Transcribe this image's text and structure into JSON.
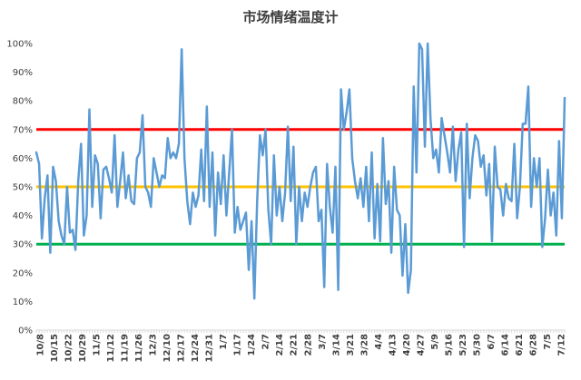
{
  "chart_data": {
    "type": "line",
    "title": "市场情绪温度计",
    "xlabel": "",
    "ylabel": "",
    "ylim": [
      0,
      100
    ],
    "y_ticks": [
      "0%",
      "10%",
      "20%",
      "30%",
      "40%",
      "50%",
      "60%",
      "70%",
      "80%",
      "90%",
      "100%"
    ],
    "x_tick_labels": [
      "10/8",
      "10/15",
      "10/22",
      "10/29",
      "11/5",
      "11/12",
      "11/19",
      "11/26",
      "12/3",
      "12/10",
      "12/17",
      "12/24",
      "12/31",
      "1/7",
      "1/17",
      "1/24",
      "2/7",
      "2/14",
      "2/21",
      "2/28",
      "3/7",
      "3/14",
      "3/21",
      "3/28",
      "4/4",
      "4/13",
      "4/20",
      "4/27",
      "5/9",
      "5/16",
      "5/23",
      "5/30",
      "6/7",
      "6/14",
      "6/21",
      "6/28",
      "7/5",
      "7/12"
    ],
    "colors": {
      "series": "#5b9bd5",
      "high_line": "#ff0000",
      "mid_line": "#ffc000",
      "low_line": "#00b050",
      "axis": "#d9d9d9"
    },
    "reference_lines": [
      {
        "value": 70,
        "color": "#ff0000"
      },
      {
        "value": 50,
        "color": "#ffc000"
      },
      {
        "value": 30,
        "color": "#00b050"
      }
    ],
    "series": [
      {
        "values": [
          62,
          58,
          32,
          46,
          54,
          27,
          57,
          52,
          38,
          33,
          30,
          50,
          34,
          35,
          28,
          52,
          65,
          33,
          40,
          77,
          43,
          61,
          58,
          39,
          56,
          57,
          53,
          48,
          68,
          43,
          52,
          62,
          46,
          54,
          45,
          44,
          60,
          62,
          75,
          50,
          48,
          43,
          60,
          55,
          50,
          54,
          53,
          67,
          60,
          62,
          60,
          65,
          98,
          60,
          45,
          37,
          48,
          43,
          47,
          63,
          45,
          78,
          43,
          62,
          33,
          55,
          44,
          61,
          40,
          55,
          70,
          34,
          43,
          35,
          38,
          41,
          21,
          38,
          11,
          45,
          68,
          61,
          70,
          42,
          30,
          61,
          40,
          50,
          38,
          48,
          71,
          45,
          64,
          30,
          50,
          38,
          48,
          43,
          50,
          55,
          57,
          38,
          42,
          15,
          58,
          43,
          34,
          57,
          14,
          84,
          70,
          76,
          84,
          60,
          52,
          46,
          53,
          43,
          57,
          38,
          62,
          32,
          51,
          31,
          67,
          44,
          52,
          27,
          57,
          42,
          40,
          19,
          37,
          13,
          21,
          85,
          55,
          100,
          98,
          64,
          100,
          74,
          60,
          63,
          55,
          74,
          68,
          62,
          55,
          71,
          52,
          63,
          69,
          29,
          72,
          46,
          60,
          68,
          66,
          57,
          61,
          47,
          58,
          31,
          64,
          50,
          49,
          40,
          51,
          46,
          45,
          65,
          39,
          50,
          72,
          72,
          85,
          43,
          60,
          50,
          60,
          29,
          39,
          56,
          40,
          48,
          33,
          66,
          39,
          81
        ]
      }
    ]
  }
}
